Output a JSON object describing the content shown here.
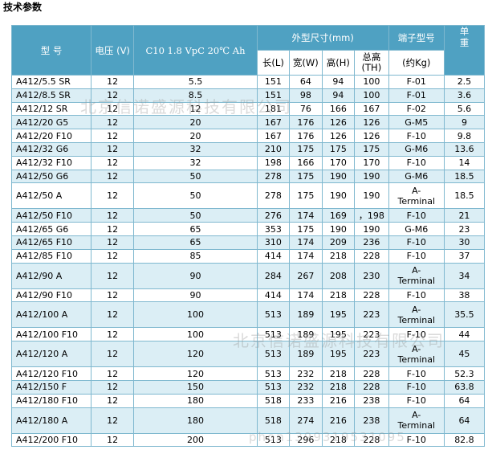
{
  "title": "技术参数",
  "watermark": "北京信诺盛源科技有限公司",
  "watermark_phone": "phon1399319531095",
  "header": {
    "model": "型  号",
    "voltage": "电压\n(V)",
    "capacity": "C10 1.8 VpC 20℃ Ah",
    "dimensions": "外型尺寸(mm)",
    "length": "长(L)",
    "width": "宽(W)",
    "height": "高(H)",
    "total_height": "总高\n(TH)",
    "terminal": "端子型号",
    "weight_top": "单\n重",
    "weight_unit": "(约Kg)"
  },
  "rows": [
    {
      "model": "A412/5.5 SR",
      "v": "12",
      "cap": "5.5",
      "l": "151",
      "w": "64",
      "h": "94",
      "th": "100",
      "term": "F-01",
      "kg": "2.5"
    },
    {
      "model": "A412/8.5 SR",
      "v": "12",
      "cap": "8.5",
      "l": "151",
      "w": "98",
      "h": "94",
      "th": "100",
      "term": "F-01",
      "kg": "3.6"
    },
    {
      "model": "A412/12 SR",
      "v": "12",
      "cap": "12",
      "l": "181",
      "w": "76",
      "h": "166",
      "th": "167",
      "term": "F-02",
      "kg": "5.6"
    },
    {
      "model": "A412/20 G5",
      "v": "12",
      "cap": "20",
      "l": "167",
      "w": "176",
      "h": "126",
      "th": "126",
      "term": "G-M5",
      "kg": "9"
    },
    {
      "model": "A412/20 F10",
      "v": "12",
      "cap": "20",
      "l": "167",
      "w": "176",
      "h": "126",
      "th": "126",
      "term": "F-10",
      "kg": "9.8"
    },
    {
      "model": "A412/32 G6",
      "v": "12",
      "cap": "32",
      "l": "210",
      "w": "175",
      "h": "175",
      "th": "175",
      "term": "G-M6",
      "kg": "13.6"
    },
    {
      "model": "A412/32 F10",
      "v": "12",
      "cap": "32",
      "l": "198",
      "w": "166",
      "h": "170",
      "th": "170",
      "term": "F-10",
      "kg": "14"
    },
    {
      "model": "A412/50 G6",
      "v": "12",
      "cap": "50",
      "l": "278",
      "w": "175",
      "h": "190",
      "th": "190",
      "term": "G-M6",
      "kg": "18.5"
    },
    {
      "model": "A412/50 A",
      "v": "12",
      "cap": "50",
      "l": "278",
      "w": "175",
      "h": "190",
      "th": "190",
      "term": "A-\nTerminal",
      "kg": "18.5",
      "tall": true
    },
    {
      "model": "A412/50 F10",
      "v": "12",
      "cap": "50",
      "l": "276",
      "w": "174",
      "h": "169",
      "th": "，198",
      "term": "F-10",
      "kg": "21"
    },
    {
      "model": "A412/65 G6",
      "v": "12",
      "cap": "65",
      "l": "353",
      "w": "175",
      "h": "190",
      "th": "190",
      "term": "G-M6",
      "kg": "23"
    },
    {
      "model": "A412/65 F10",
      "v": "12",
      "cap": "65",
      "l": "310",
      "w": "174",
      "h": "209",
      "th": "236",
      "term": "F-10",
      "kg": "30"
    },
    {
      "model": "A412/85 F10",
      "v": "12",
      "cap": "85",
      "l": "414",
      "w": "174",
      "h": "218",
      "th": "228",
      "term": "F-10",
      "kg": "37"
    },
    {
      "model": "A412/90 A",
      "v": "12",
      "cap": "90",
      "l": "284",
      "w": "267",
      "h": "208",
      "th": "230",
      "term": "A-\nTerminal",
      "kg": "34",
      "tall": true
    },
    {
      "model": "A412/90 F10",
      "v": "12",
      "cap": "90",
      "l": "414",
      "w": "174",
      "h": "218",
      "th": "228",
      "term": "F-10",
      "kg": "38"
    },
    {
      "model": "A412/100 A",
      "v": "12",
      "cap": "100",
      "l": "513",
      "w": "189",
      "h": "195",
      "th": "223",
      "term": "A-\nTerminal",
      "kg": "35.5",
      "tall": true
    },
    {
      "model": "A412/100 F10",
      "v": "12",
      "cap": "100",
      "l": "513",
      "w": "189",
      "h": "195",
      "th": "223",
      "term": "F-10",
      "kg": "44"
    },
    {
      "model": "A412/120 A",
      "v": "12",
      "cap": "120",
      "l": "513",
      "w": "189",
      "h": "195",
      "th": "223",
      "term": "A-\nTerminal",
      "kg": "45",
      "tall": true
    },
    {
      "model": "A412/120 F10",
      "v": "12",
      "cap": "120",
      "l": "513",
      "w": "232",
      "h": "218",
      "th": "228",
      "term": "F-10",
      "kg": "52.3"
    },
    {
      "model": "A412/150 F",
      "v": "12",
      "cap": "150",
      "l": "513",
      "w": "232",
      "h": "218",
      "th": "228",
      "term": "F-10",
      "kg": "63.8"
    },
    {
      "model": "A412/180 F10",
      "v": "12",
      "cap": "180",
      "l": "518",
      "w": "233",
      "h": "216",
      "th": "238",
      "term": "F-10",
      "kg": "64"
    },
    {
      "model": "A412/180 A",
      "v": "12",
      "cap": "180",
      "l": "518",
      "w": "274",
      "h": "216",
      "th": "238",
      "term": "A-\nTerminal",
      "kg": "64",
      "tall": true
    },
    {
      "model": "A412/200 F10",
      "v": "12",
      "cap": "200",
      "l": "513",
      "w": "296",
      "h": "218",
      "th": "228",
      "term": "F-10",
      "kg": "82.8"
    }
  ]
}
